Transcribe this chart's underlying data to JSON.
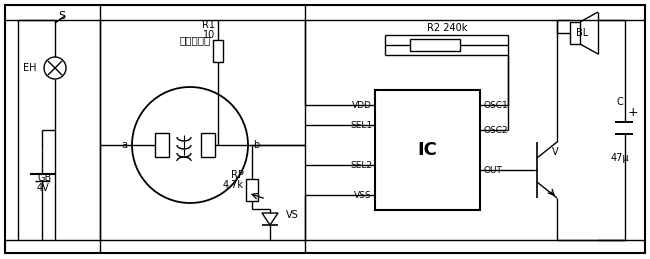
{
  "bg_color": "#ffffff",
  "border_color": "#000000",
  "S_label": "S",
  "EH_label": "EH",
  "GB_label": "GB",
  "GB_voltage": "4V",
  "R1_label": "R1",
  "R1_value": "10",
  "sensor_label": "气敏传感器",
  "a_label": "a",
  "b_label": "b",
  "RP_label": "RP",
  "RP_value": "4.7k",
  "VS_label": "VS",
  "VDD_label": "VDD",
  "SEL1_label": "SEL1",
  "SEL2_label": "SEL2",
  "VSS_label": "VSS",
  "IC_label": "IC",
  "OSC1_label": "OSC1",
  "OSC2_label": "OSC2",
  "OUT_label": "OUT",
  "R2_label": "R2 240k",
  "BL_label": "BL",
  "V_label": "V",
  "C_label": "C",
  "C_value": "47μ"
}
